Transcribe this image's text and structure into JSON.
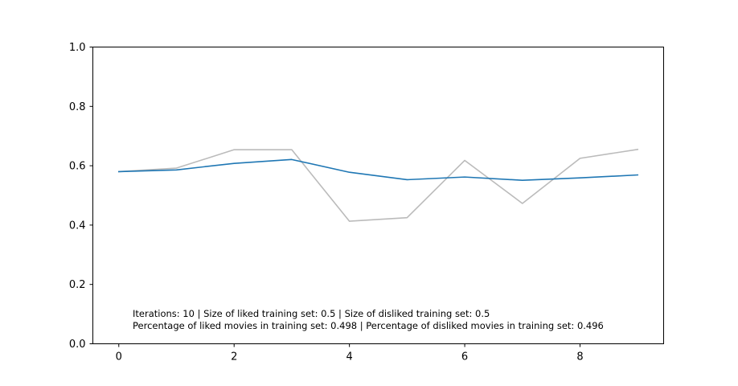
{
  "chart_data": {
    "type": "line",
    "title": "",
    "xlabel": "",
    "ylabel": "",
    "xlim": [
      -0.45,
      9.45
    ],
    "ylim": [
      0.0,
      1.0
    ],
    "x_ticks": [
      0,
      2,
      4,
      6,
      8
    ],
    "x_tick_labels": [
      "0",
      "2",
      "4",
      "6",
      "8"
    ],
    "y_ticks": [
      0.0,
      0.2,
      0.4,
      0.6,
      0.8,
      1.0
    ],
    "y_tick_labels": [
      "0.0",
      "0.2",
      "0.4",
      "0.6",
      "0.8",
      "1.0"
    ],
    "grid": false,
    "legend": "none",
    "x": [
      0,
      1,
      2,
      3,
      4,
      5,
      6,
      7,
      8,
      9
    ],
    "series": [
      {
        "color": "#bbbbbb",
        "values": [
          0.58,
          0.592,
          0.654,
          0.654,
          0.413,
          0.425,
          0.618,
          0.473,
          0.625,
          0.655
        ]
      },
      {
        "color": "#1f77b4",
        "values": [
          0.58,
          0.586,
          0.608,
          0.621,
          0.578,
          0.553,
          0.562,
          0.551,
          0.559,
          0.569
        ]
      }
    ],
    "annotation": [
      "Iterations: 10 | Size of liked training set: 0.5 | Size of disliked training set: 0.5",
      "Percentage of liked movies in training set: 0.498 | Percentage of disliked movies in training set: 0.496"
    ]
  }
}
